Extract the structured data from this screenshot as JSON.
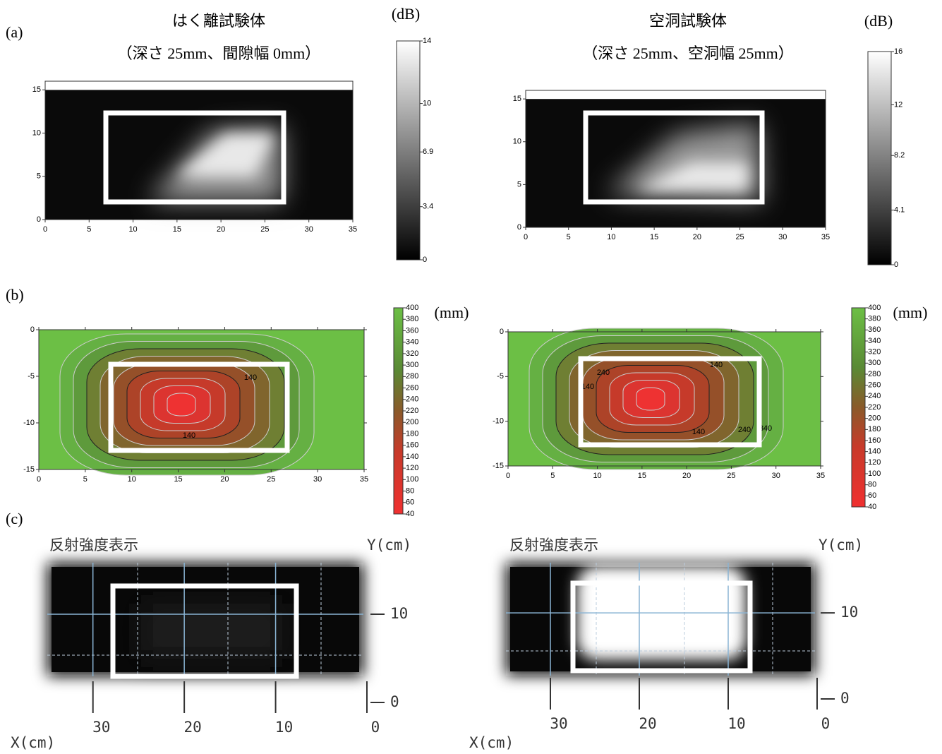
{
  "panel_labels": [
    "(a)",
    "(b)",
    "(c)"
  ],
  "chart_data": [
    {
      "type": "heatmap",
      "title": "はく離試験体",
      "subtitle": "（深さ 25mm、間隙幅 0mm）",
      "xlim": [
        0,
        35
      ],
      "xticks": [
        0,
        5,
        10,
        15,
        20,
        25,
        30,
        35
      ],
      "ylim": [
        0,
        16
      ],
      "yticks": [
        0,
        5,
        10,
        15
      ],
      "colorbar": {
        "label": "(dB)",
        "lim": [
          0,
          14
        ],
        "ticks": [
          0,
          3.4,
          6.9,
          10,
          14
        ]
      }
    },
    {
      "type": "heatmap",
      "title": "空洞試験体",
      "subtitle": "（深さ 25mm、空洞幅 25mm）",
      "xlim": [
        0,
        35
      ],
      "xticks": [
        0,
        5,
        10,
        15,
        20,
        25,
        30,
        35
      ],
      "ylim": [
        0,
        16
      ],
      "yticks": [
        0,
        5,
        10,
        15
      ],
      "colorbar": {
        "label": "(dB)",
        "lim": [
          0,
          16
        ],
        "ticks": [
          0,
          4.1,
          8.2,
          12,
          16
        ]
      }
    },
    {
      "type": "contour",
      "xlim": [
        0,
        35
      ],
      "xticks": [
        0,
        5,
        10,
        15,
        20,
        25,
        30,
        35
      ],
      "ylim": [
        -15,
        0
      ],
      "yticks": [
        0,
        -5,
        -10,
        -15
      ],
      "contour_labels": [
        140,
        140
      ],
      "colorbar": {
        "label": "(mm)",
        "lim": [
          40,
          400
        ],
        "ticks": [
          40,
          60,
          80,
          100,
          120,
          140,
          160,
          180,
          200,
          220,
          240,
          260,
          280,
          300,
          320,
          340,
          360,
          380,
          400
        ]
      }
    },
    {
      "type": "contour",
      "xlim": [
        0,
        35
      ],
      "xticks": [
        0,
        5,
        10,
        15,
        20,
        25,
        30,
        35
      ],
      "ylim": [
        -15,
        0
      ],
      "yticks": [
        0,
        -5,
        -10,
        -15
      ],
      "contour_labels": [
        140,
        140,
        140,
        240,
        240,
        340
      ],
      "colorbar": {
        "label": "(mm)",
        "lim": [
          40,
          400
        ],
        "ticks": [
          40,
          60,
          80,
          100,
          120,
          140,
          160,
          180,
          200,
          220,
          240,
          260,
          280,
          300,
          320,
          340,
          360,
          380,
          400
        ]
      }
    },
    {
      "type": "image",
      "title": "反射強度表示",
      "xlabel": "X(cm)",
      "ylabel": "Y(cm)",
      "xlim": [
        35,
        0
      ],
      "xticks": [
        30,
        20,
        10,
        0
      ],
      "ylim": [
        0,
        16
      ],
      "yticks": [
        10,
        0
      ]
    },
    {
      "type": "image",
      "title": "反射強度表示",
      "xlabel": "X(cm)",
      "ylabel": "Y(cm)",
      "xlim": [
        35,
        0
      ],
      "xticks": [
        30,
        20,
        10,
        0
      ],
      "ylim": [
        0,
        16
      ],
      "yticks": [
        10,
        0
      ]
    }
  ]
}
